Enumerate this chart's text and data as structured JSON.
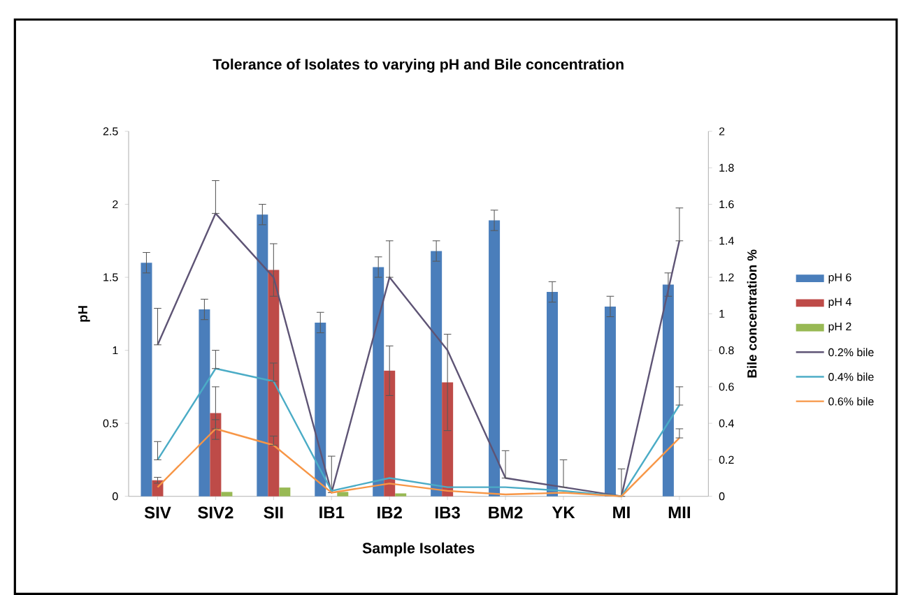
{
  "chart_data": {
    "type": "bar",
    "title": "Tolerance of Isolates to varying pH and Bile concentration",
    "xlabel": "Sample Isolates",
    "ylabel": "pH",
    "y2label": "Bile concentration %",
    "categories": [
      "SIV",
      "SIV2",
      "SII",
      "IB1",
      "IB2",
      "IB3",
      "BM2",
      "YK",
      "MI",
      "MII"
    ],
    "series": [
      {
        "name": "pH 6",
        "color": "#4a7ebb",
        "values": [
          1.6,
          1.28,
          1.93,
          1.19,
          1.57,
          1.68,
          1.89,
          1.4,
          1.3,
          1.45
        ],
        "errors": [
          0.07,
          0.07,
          0.07,
          0.07,
          0.07,
          0.07,
          0.07,
          0.07,
          0.07,
          0.08
        ]
      },
      {
        "name": "pH 4",
        "color": "#be4b48",
        "values": [
          0.11,
          0.57,
          1.55,
          0,
          0.86,
          0.78,
          0,
          0,
          0,
          0
        ],
        "errors": [
          0.02,
          0.18,
          0.18,
          null,
          0.17,
          0.33,
          null,
          null,
          null,
          null
        ]
      },
      {
        "name": "pH 2",
        "color": "#98b954",
        "values": [
          0,
          0.03,
          0.06,
          0.03,
          0.02,
          0,
          0,
          0,
          0,
          0
        ]
      },
      {
        "name": "0.2% bile",
        "type": "line",
        "axis": "y2",
        "color": "#5e5475",
        "values": [
          0.83,
          1.55,
          1.2,
          0.02,
          1.2,
          0.8,
          0.1,
          0.05,
          0,
          1.4
        ],
        "errors": [
          [
            0.83,
            1.03
          ],
          [
            1.55,
            1.73
          ],
          null,
          [
            0.02,
            0.22
          ],
          [
            1.2,
            1.4
          ],
          null,
          [
            0.1,
            0.25
          ],
          [
            0.05,
            0.2
          ],
          [
            0,
            0.15
          ],
          [
            1.4,
            1.58
          ]
        ]
      },
      {
        "name": "0.4% bile",
        "type": "line",
        "axis": "y2",
        "color": "#4bacc6",
        "values": [
          0.2,
          0.7,
          0.63,
          0.03,
          0.1,
          0.05,
          0.05,
          0.03,
          0,
          0.5
        ],
        "errors": [
          [
            0.2,
            0.3
          ],
          [
            0.7,
            0.8
          ],
          [
            0.63,
            0.73
          ],
          null,
          null,
          null,
          null,
          null,
          null,
          [
            0.5,
            0.6
          ]
        ]
      },
      {
        "name": "0.6% bile",
        "type": "line",
        "axis": "y2",
        "color": "#f79646",
        "values": [
          0.05,
          0.37,
          0.28,
          0.02,
          0.07,
          0.03,
          0.01,
          0.02,
          0,
          0.32
        ],
        "errors": [
          null,
          [
            0.37,
            0.42
          ],
          [
            0.28,
            0.33
          ],
          null,
          null,
          null,
          null,
          null,
          null,
          [
            0.32,
            0.37
          ]
        ]
      }
    ],
    "ylim": [
      0,
      2.5
    ],
    "yticks": [
      0,
      0.5,
      1,
      1.5,
      2,
      2.5
    ],
    "y2lim": [
      0,
      2
    ],
    "y2ticks": [
      0,
      0.2,
      0.4,
      0.6,
      0.8,
      1,
      1.2,
      1.4,
      1.6,
      1.8,
      2
    ],
    "grid": false,
    "legend": "right",
    "marker": "none",
    "line_style": "solid"
  }
}
